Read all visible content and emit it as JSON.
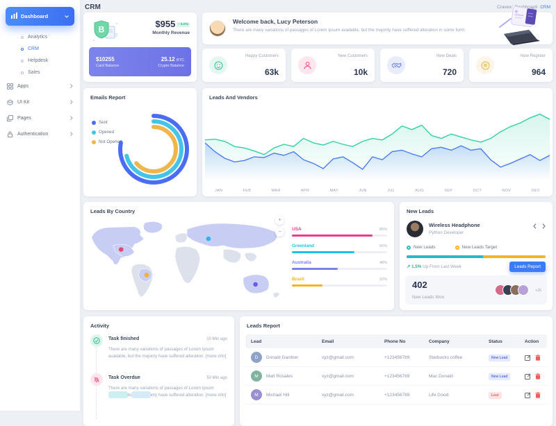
{
  "page": {
    "title": "CRM"
  },
  "breadcrumb": {
    "items": [
      "Cravex",
      "Dashboard",
      "CRM"
    ]
  },
  "sidebar": {
    "dashboard_label": "Dashboard",
    "sub_items": [
      {
        "label": "Analytics"
      },
      {
        "label": "CRM"
      },
      {
        "label": "Helpdesk"
      },
      {
        "label": "Sales"
      }
    ],
    "groups": [
      {
        "label": "Apps"
      },
      {
        "label": "UI Kit"
      },
      {
        "label": "Pages"
      },
      {
        "label": "Authentication"
      }
    ]
  },
  "revenue_card": {
    "amount": "$955",
    "change": "↑ 5.0%",
    "label": "Monthly Revenue",
    "card_balance": "$10255",
    "card_balance_label": "Card Balance",
    "crypto_value": "25.12",
    "crypto_unit": "BTC",
    "crypto_label": "Crypto Balance"
  },
  "welcome": {
    "title": "Welcome back, Lucy Peterson",
    "subtitle": "There are many variations of passages of Lorem Ipsum available, but the majority have suffered alteration in some form."
  },
  "stats": [
    {
      "label": "Happy Customers",
      "value": "63k",
      "icon": "smiley",
      "color": "#34c38f"
    },
    {
      "label": "New Customers",
      "value": "10k",
      "icon": "person",
      "color": "#f0427c"
    },
    {
      "label": "New Deals",
      "value": "720",
      "icon": "handshake",
      "color": "#5b73e8"
    },
    {
      "label": "New Register",
      "value": "964",
      "icon": "registered",
      "color": "#f1b44c"
    }
  ],
  "sections": {
    "emails_report": "Emails Report",
    "leads_vendors": "Leads And Vendors",
    "leads_by_country": "Leads By Country",
    "new_leads": "New Leads",
    "activity": "Activity",
    "leads_report": "Leads Report"
  },
  "chart_data": [
    {
      "type": "radial",
      "title": "Emails Report",
      "legend_position": "left",
      "series": [
        {
          "label": "Sent",
          "percent": 78,
          "color": "#4a6cf7"
        },
        {
          "label": "Opened",
          "percent": 71,
          "color": "#45c4e9"
        },
        {
          "label": "Not Opened",
          "percent": 64,
          "color": "#f0b64c"
        }
      ]
    },
    {
      "type": "area",
      "title": "Leads And Vendors",
      "months": [
        "JAN",
        "FEB",
        "MAR",
        "APR",
        "MAY",
        "JUN",
        "JUL",
        "AUG",
        "SEP",
        "OCT",
        "NOV",
        "DEC"
      ],
      "ylim": [
        0,
        100
      ],
      "grid": false,
      "series": [
        {
          "name": "green-series",
          "color": "#2fd0a4",
          "fill_from": "rgba(47,208,164,0.20)",
          "values": [
            56,
            57,
            54,
            47,
            45,
            41,
            36,
            45,
            50,
            47,
            58,
            52,
            49,
            54,
            50,
            47,
            54,
            58,
            56,
            64,
            75,
            70,
            76,
            62,
            58,
            64,
            60,
            56,
            53,
            58,
            67,
            74,
            79,
            86,
            91,
            84
          ]
        },
        {
          "name": "blue-series",
          "color": "#4a7df5",
          "fill_from": "rgba(74,125,245,0.25)",
          "values": [
            52,
            40,
            31,
            26,
            28,
            33,
            32,
            38,
            35,
            40,
            29,
            24,
            17,
            30,
            33,
            25,
            16,
            33,
            29,
            40,
            42,
            37,
            33,
            44,
            46,
            42,
            48,
            42,
            44,
            29,
            19,
            24,
            30,
            36,
            28,
            35
          ]
        }
      ]
    },
    {
      "type": "bar",
      "title": "Leads By Country",
      "categories": [
        "USA",
        "Greenland",
        "Australia",
        "Brazil"
      ],
      "values": [
        85,
        66,
        48,
        32
      ],
      "labels": [
        "85%",
        "66%",
        "48%",
        "32%"
      ],
      "colors": [
        "#ea3c8c",
        "#22c0e8",
        "#7a7ff2",
        "#f5b225"
      ],
      "xlim": [
        0,
        100
      ]
    }
  ],
  "map_controls": {
    "zoom_in": "+",
    "zoom_out": "−"
  },
  "new_leads": {
    "item_name": "Wireless Headphone",
    "item_role": "Python Developer",
    "legend_a": "New Leads",
    "legend_a_color": "#2ab7ca",
    "legend_b": "New Leads Target",
    "legend_b_color": "#f5b225",
    "progress_percent": 55,
    "trend_value": "↗ 1.5%",
    "trend_text": "Up From Last Week",
    "button": "Leads Report",
    "won_value": "402",
    "won_label": "New Leads Won",
    "more_avatars": "+25"
  },
  "activity": {
    "items": [
      {
        "title": "Task finished",
        "time": "10 Min ago",
        "icon": "check-circle",
        "color": "#34c38f",
        "text": "There are many variations of passages of Lorem Ipsum available, but the majority have suffered alteration. [more info]"
      },
      {
        "title": "Task Overdue",
        "time": "50 Min ago",
        "icon": "bell-slash",
        "color": "#f25c8e",
        "text": "There are many variations of passages of Lorem Ipsum available, but the majority have suffered alteration. [more info]"
      }
    ]
  },
  "leads_report": {
    "columns": [
      "Lead",
      "Email",
      "Phone No",
      "Company",
      "Status",
      "Action"
    ],
    "rows": [
      {
        "name": "Donald Gardner",
        "email": "xyz@gmail.com",
        "phone": "+123456789",
        "company": "Starbucks coffee",
        "status": "New Lead",
        "status_type": "new"
      },
      {
        "name": "Matt Rosales",
        "email": "xyz@gmail.com",
        "phone": "+123456789",
        "company": "Mac Donald",
        "status": "New Lead",
        "status_type": "new"
      },
      {
        "name": "Michael Hill",
        "email": "xyz@gmail.com",
        "phone": "+123456789",
        "company": "Life Good",
        "status": "Lost",
        "status_type": "lost"
      }
    ]
  }
}
